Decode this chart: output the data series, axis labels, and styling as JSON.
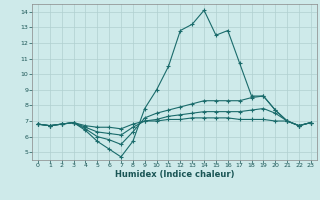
{
  "xlabel": "Humidex (Indice chaleur)",
  "bg_color": "#ceeaea",
  "grid_color": "#b0d0d0",
  "line_color": "#1a6b6b",
  "xlim": [
    -0.5,
    23.5
  ],
  "ylim": [
    4.5,
    14.5
  ],
  "xticks": [
    0,
    1,
    2,
    3,
    4,
    5,
    6,
    7,
    8,
    9,
    10,
    11,
    12,
    13,
    14,
    15,
    16,
    17,
    18,
    19,
    20,
    21,
    22,
    23
  ],
  "yticks": [
    5,
    6,
    7,
    8,
    9,
    10,
    11,
    12,
    13,
    14
  ],
  "series": {
    "line1_y": [
      6.8,
      6.7,
      6.8,
      6.9,
      6.4,
      5.7,
      5.2,
      4.7,
      5.7,
      7.8,
      9.0,
      10.5,
      12.8,
      13.2,
      14.1,
      12.5,
      12.8,
      10.7,
      8.6,
      8.6,
      7.7,
      7.0,
      6.7,
      6.9
    ],
    "line2_y": [
      6.8,
      6.7,
      6.8,
      6.9,
      6.5,
      6.0,
      5.8,
      5.5,
      6.3,
      7.2,
      7.5,
      7.7,
      7.9,
      8.1,
      8.3,
      8.3,
      8.3,
      8.3,
      8.5,
      8.6,
      7.7,
      7.0,
      6.7,
      6.9
    ],
    "line3_y": [
      6.8,
      6.7,
      6.8,
      6.9,
      6.6,
      6.3,
      6.2,
      6.1,
      6.6,
      7.0,
      7.1,
      7.3,
      7.4,
      7.5,
      7.6,
      7.6,
      7.6,
      7.6,
      7.7,
      7.8,
      7.5,
      7.0,
      6.7,
      6.9
    ],
    "line4_y": [
      6.8,
      6.7,
      6.8,
      6.9,
      6.7,
      6.6,
      6.6,
      6.5,
      6.8,
      7.0,
      7.0,
      7.1,
      7.1,
      7.2,
      7.2,
      7.2,
      7.2,
      7.1,
      7.1,
      7.1,
      7.0,
      7.0,
      6.7,
      6.9
    ]
  }
}
